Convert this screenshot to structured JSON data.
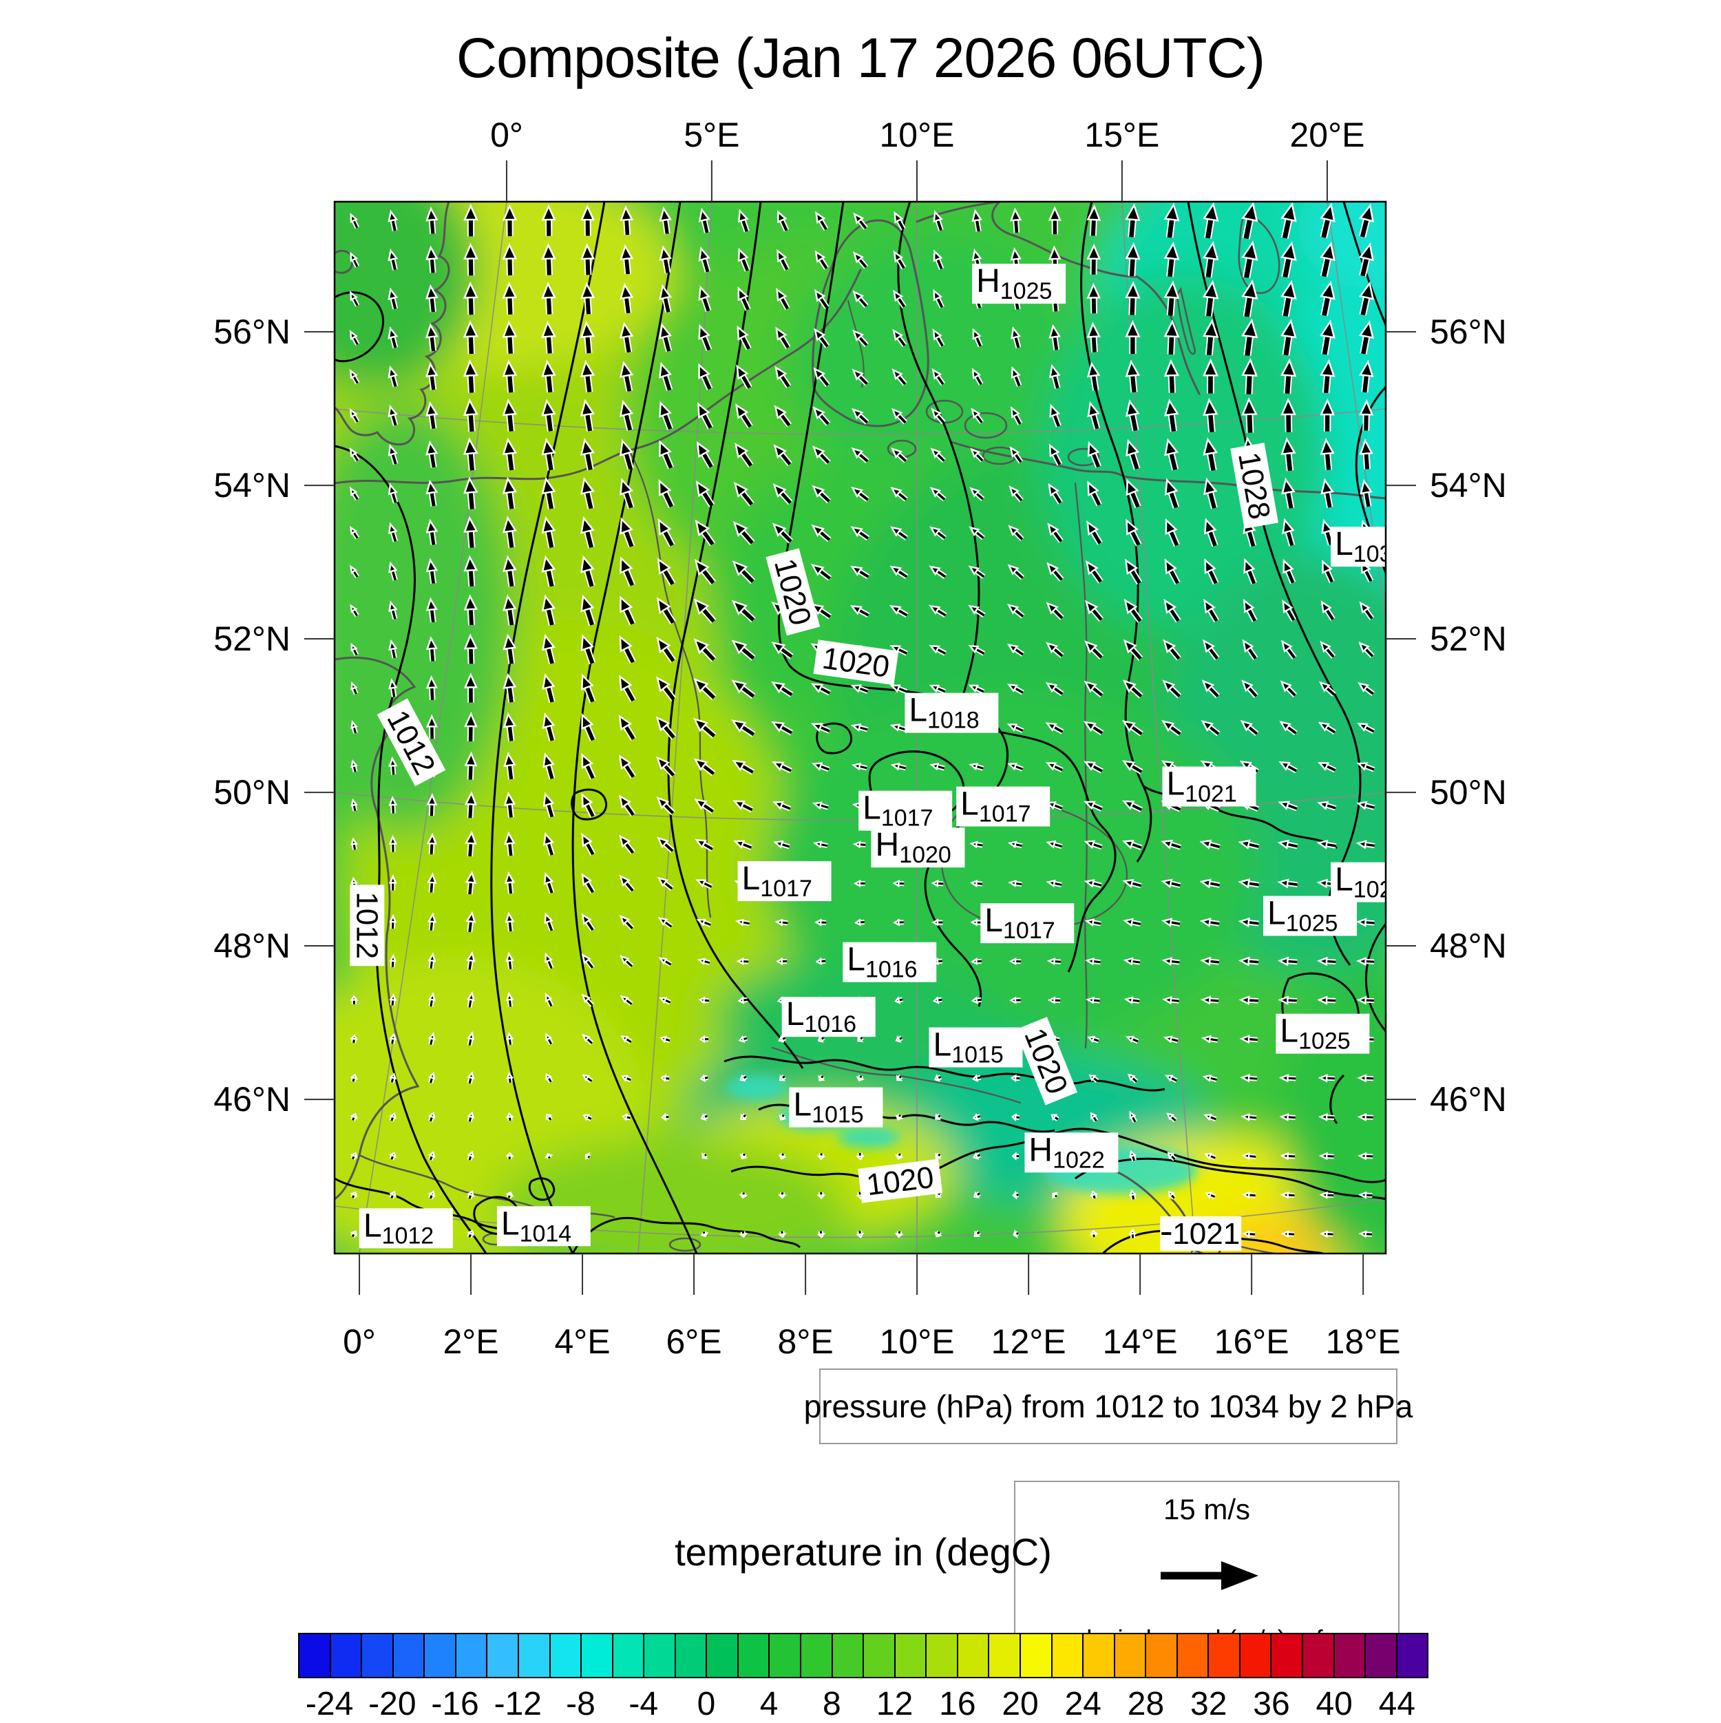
{
  "title": "Composite (Jan 17 2026 06UTC)",
  "pressure_caption": "pressure (hPa) from 1012 to 1034 by 2 hPa",
  "wind_legend": {
    "speed_label": "15 m/s",
    "caption": "ground windspeed (m/s) reference"
  },
  "colorbar": {
    "title": "temperature in (degC)",
    "tick_labels": [
      "-24",
      "-20",
      "-16",
      "-12",
      "-8",
      "-4",
      "0",
      "4",
      "8",
      "12",
      "16",
      "20",
      "24",
      "28",
      "32",
      "36",
      "40",
      "44"
    ],
    "segment_colors": [
      "#0b0be8",
      "#0f2cf2",
      "#1448f6",
      "#1964fa",
      "#1e82ff",
      "#28a0ff",
      "#32beff",
      "#28d2f8",
      "#14e4ee",
      "#00ecd8",
      "#00e4b6",
      "#00d896",
      "#00cc78",
      "#00c05a",
      "#0ec244",
      "#22c436",
      "#30c62e",
      "#46ca28",
      "#64d01e",
      "#86d814",
      "#aade0a",
      "#cce600",
      "#e6ee00",
      "#f8f800",
      "#ffe600",
      "#ffc900",
      "#ffaa00",
      "#ff8a00",
      "#ff6400",
      "#ff3c00",
      "#f51800",
      "#dc0014",
      "#bd0032",
      "#9b0050",
      "#76006e",
      "#4b00a0"
    ]
  },
  "axes": {
    "top": [
      {
        "label": "0°",
        "f": 0.1637
      },
      {
        "label": "5°E",
        "f": 0.3588
      },
      {
        "label": "10°E",
        "f": 0.554
      },
      {
        "label": "15°E",
        "f": 0.7491
      },
      {
        "label": "20°E",
        "f": 0.9443
      }
    ],
    "bottom": [
      {
        "label": "0°",
        "f": 0.0236
      },
      {
        "label": "2°E",
        "f": 0.1297
      },
      {
        "label": "4°E",
        "f": 0.2358
      },
      {
        "label": "6°E",
        "f": 0.3419
      },
      {
        "label": "8°E",
        "f": 0.448
      },
      {
        "label": "10°E",
        "f": 0.5541
      },
      {
        "label": "12°E",
        "f": 0.6602
      },
      {
        "label": "14°E",
        "f": 0.7663
      },
      {
        "label": "16°E",
        "f": 0.8724
      },
      {
        "label": "18°E",
        "f": 0.9785
      }
    ],
    "left": [
      {
        "label": "56°N",
        "f": 0.1237
      },
      {
        "label": "54°N",
        "f": 0.2697
      },
      {
        "label": "52°N",
        "f": 0.4156
      },
      {
        "label": "50°N",
        "f": 0.5616
      },
      {
        "label": "48°N",
        "f": 0.7075
      },
      {
        "label": "46°N",
        "f": 0.8535
      }
    ],
    "right": [
      {
        "label": "56°N",
        "f": 0.1237
      },
      {
        "label": "54°N",
        "f": 0.2697
      },
      {
        "label": "52°N",
        "f": 0.4156
      },
      {
        "label": "50°N",
        "f": 0.5616
      },
      {
        "label": "48°N",
        "f": 0.7075
      },
      {
        "label": "46°N",
        "f": 0.8535
      }
    ]
  },
  "chart_data": {
    "type": "heatmap",
    "title": "Composite (Jan 17 2026 06UTC)",
    "xlabel": "",
    "ylabel": "",
    "region": {
      "lat_ticks": [
        "46°N",
        "48°N",
        "50°N",
        "52°N",
        "54°N",
        "56°N"
      ],
      "lon_ticks_bottom": [
        "0°",
        "2°E",
        "4°E",
        "6°E",
        "8°E",
        "10°E",
        "12°E",
        "14°E",
        "16°E",
        "18°E"
      ],
      "lon_ticks_top": [
        "0°",
        "5°E",
        "10°E",
        "15°E",
        "20°E"
      ]
    },
    "temperature_scale": {
      "unit": "degC",
      "min": -26,
      "max": 46,
      "step": 2
    },
    "pressure_contours": {
      "unit": "hPa",
      "min": 1012,
      "max": 1034,
      "step": 2
    },
    "pressure_centers": [
      {
        "kind": "H",
        "value": "1025",
        "fx": 0.651,
        "fy": 0.078
      },
      {
        "kind": "L",
        "value": "1018",
        "fx": 0.587,
        "fy": 0.486
      },
      {
        "kind": "L",
        "value": "1021",
        "fx": 0.832,
        "fy": 0.556
      },
      {
        "kind": "L",
        "value": "1017",
        "fx": 0.543,
        "fy": 0.579
      },
      {
        "kind": "L",
        "value": "1017",
        "fx": 0.636,
        "fy": 0.575
      },
      {
        "kind": "H",
        "value": "1020",
        "fx": 0.555,
        "fy": 0.614
      },
      {
        "kind": "L",
        "value": "1017",
        "fx": 0.428,
        "fy": 0.646
      },
      {
        "kind": "L",
        "value": "1017",
        "fx": 0.659,
        "fy": 0.686
      },
      {
        "kind": "L",
        "value": "1025",
        "fx": 0.928,
        "fy": 0.679
      },
      {
        "kind": "L",
        "value": "1016",
        "fx": 0.528,
        "fy": 0.723
      },
      {
        "kind": "L",
        "value": "1016",
        "fx": 0.47,
        "fy": 0.775
      },
      {
        "kind": "L",
        "value": "1015",
        "fx": 0.61,
        "fy": 0.804
      },
      {
        "kind": "L",
        "value": "1025",
        "fx": 0.94,
        "fy": 0.791
      },
      {
        "kind": "L",
        "value": "1015",
        "fx": 0.477,
        "fy": 0.861
      },
      {
        "kind": "H",
        "value": "1022",
        "fx": 0.701,
        "fy": 0.904
      },
      {
        "kind": "L",
        "value": "1012",
        "fx": 0.068,
        "fy": 0.976
      },
      {
        "kind": "L",
        "value": "1014",
        "fx": 0.199,
        "fy": 0.974
      },
      {
        "kind": "L",
        "value": "103",
        "fx": 0.985,
        "fy": 0.328
      },
      {
        "kind": "L",
        "value": "102",
        "fx": 0.985,
        "fy": 0.647
      }
    ],
    "contour_inline_labels": [
      {
        "value": "1020",
        "fx": 0.436,
        "fy": 0.371,
        "rot": 75
      },
      {
        "value": "1020",
        "fx": 0.496,
        "fy": 0.438,
        "rot": 8
      },
      {
        "value": "1028",
        "fx": 0.875,
        "fy": 0.27,
        "rot": 80
      },
      {
        "value": "1012",
        "fx": 0.073,
        "fy": 0.514,
        "rot": 62
      },
      {
        "value": "1012",
        "fx": 0.031,
        "fy": 0.688,
        "rot": 90
      },
      {
        "value": "1020",
        "fx": 0.677,
        "fy": 0.817,
        "rot": 68
      },
      {
        "value": "1020",
        "fx": 0.538,
        "fy": 0.931,
        "rot": -7
      },
      {
        "value": "1021",
        "fx": 0.824,
        "fy": 0.981,
        "rot": 0,
        "dash": true
      }
    ],
    "wind": {
      "reference": "15 m/s",
      "grid_note": "9x9 coarse field over map, [bearing_deg_from_north, length_px]",
      "grid": [
        [
          [
            -35,
            18
          ],
          [
            0,
            44
          ],
          [
            0,
            42
          ],
          [
            -15,
            32
          ],
          [
            -38,
            26
          ],
          [
            -5,
            32
          ],
          [
            5,
            46
          ],
          [
            12,
            52
          ],
          [
            15,
            46
          ]
        ],
        [
          [
            -40,
            18
          ],
          [
            -2,
            46
          ],
          [
            -5,
            44
          ],
          [
            -25,
            36
          ],
          [
            -42,
            28
          ],
          [
            -20,
            26
          ],
          [
            0,
            46
          ],
          [
            8,
            52
          ],
          [
            12,
            46
          ]
        ],
        [
          [
            -45,
            16
          ],
          [
            -5,
            45
          ],
          [
            -12,
            44
          ],
          [
            -35,
            40
          ],
          [
            -50,
            28
          ],
          [
            -45,
            22
          ],
          [
            -20,
            42
          ],
          [
            -8,
            48
          ],
          [
            -5,
            40
          ]
        ],
        [
          [
            -48,
            14
          ],
          [
            -3,
            42
          ],
          [
            -18,
            44
          ],
          [
            -45,
            42
          ],
          [
            -60,
            28
          ],
          [
            -55,
            25
          ],
          [
            -35,
            38
          ],
          [
            -25,
            34
          ],
          [
            -35,
            28
          ]
        ],
        [
          [
            -25,
            13
          ],
          [
            2,
            40
          ],
          [
            -25,
            40
          ],
          [
            -55,
            38
          ],
          [
            -75,
            22
          ],
          [
            -70,
            20
          ],
          [
            -55,
            32
          ],
          [
            -50,
            28
          ],
          [
            -65,
            24
          ]
        ],
        [
          [
            -15,
            12
          ],
          [
            6,
            34
          ],
          [
            -32,
            32
          ],
          [
            -70,
            25
          ],
          [
            -88,
            15
          ],
          [
            -82,
            16
          ],
          [
            -72,
            26
          ],
          [
            -80,
            28
          ],
          [
            -85,
            24
          ]
        ],
        [
          [
            -8,
            10
          ],
          [
            12,
            22
          ],
          [
            -45,
            22
          ],
          [
            -95,
            13
          ],
          [
            -105,
            10
          ],
          [
            -95,
            13
          ],
          [
            -85,
            20
          ],
          [
            -87,
            26
          ],
          [
            -88,
            22
          ]
        ],
        [
          [
            25,
            9
          ],
          [
            18,
            13
          ],
          [
            -70,
            12
          ],
          [
            -130,
            9
          ],
          [
            175,
            9
          ],
          [
            -100,
            11
          ],
          [
            -20,
            16
          ],
          [
            -86,
            20
          ],
          [
            -88,
            20
          ]
        ],
        [
          [
            35,
            8
          ],
          [
            25,
            10
          ],
          [
            100,
            9
          ],
          [
            160,
            8
          ],
          [
            170,
            9
          ],
          [
            -130,
            9
          ],
          [
            10,
            12
          ],
          [
            -88,
            16
          ],
          [
            -86,
            16
          ]
        ]
      ]
    }
  }
}
